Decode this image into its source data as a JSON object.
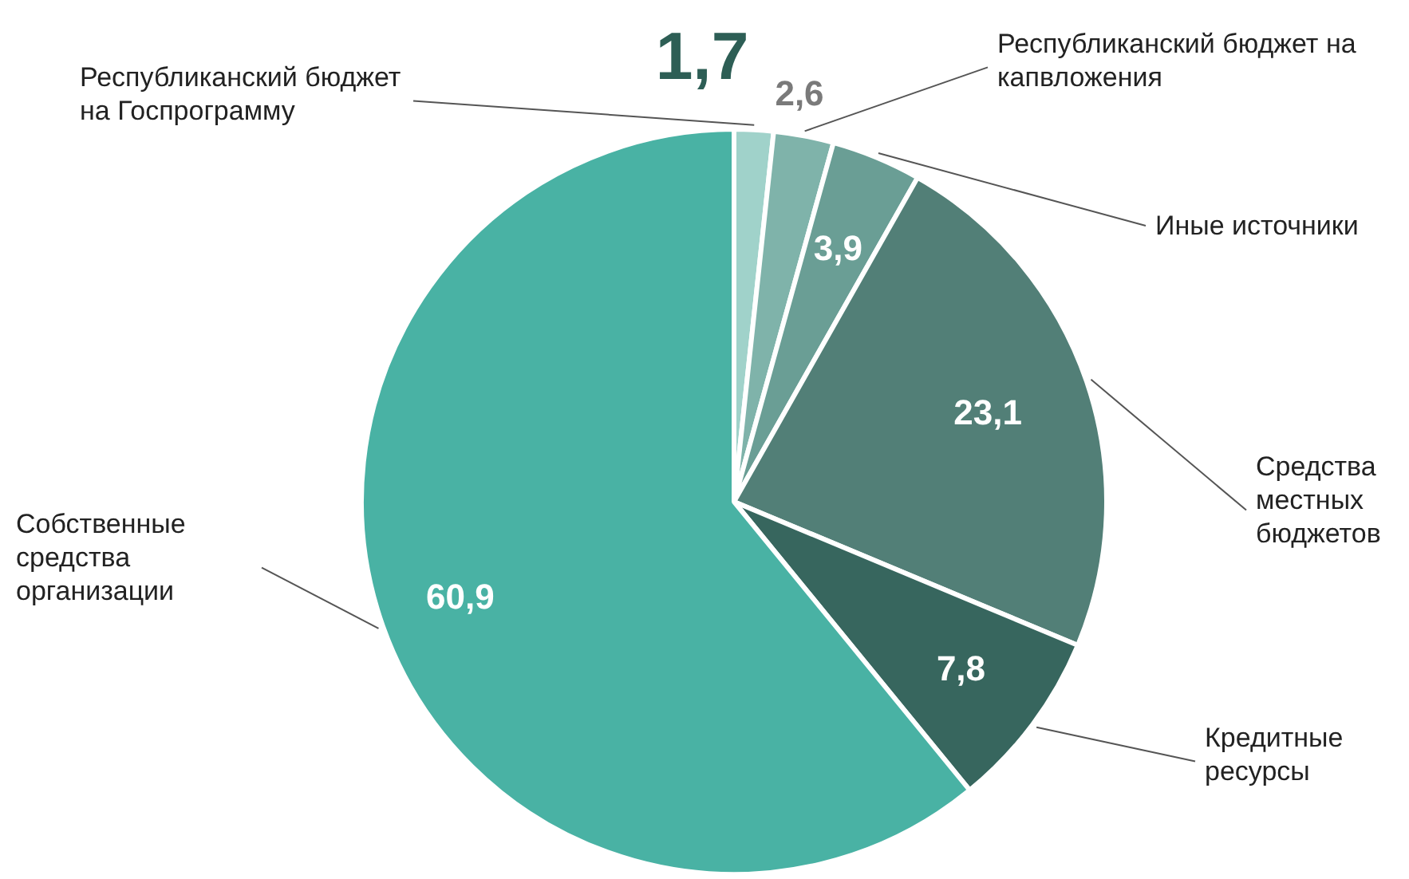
{
  "chart_data": {
    "type": "pie",
    "categories": [
      "Республиканский бюджет на Госпрограмму",
      "Республиканский бюджет на капвложения",
      "Иные источники",
      "Средства местных бюджетов",
      "Кредитные ресурсы",
      "Собственные средства организации"
    ],
    "values": [
      1.7,
      2.6,
      3.9,
      23.1,
      7.8,
      60.9
    ],
    "value_labels": [
      "1,7",
      "2,6",
      "3,9",
      "23,1",
      "7,8",
      "60,9"
    ],
    "colors": [
      "#a0d2ca",
      "#7fb3aa",
      "#6a9e95",
      "#527f77",
      "#37665e",
      "#49b2a4"
    ],
    "legend": false
  }
}
